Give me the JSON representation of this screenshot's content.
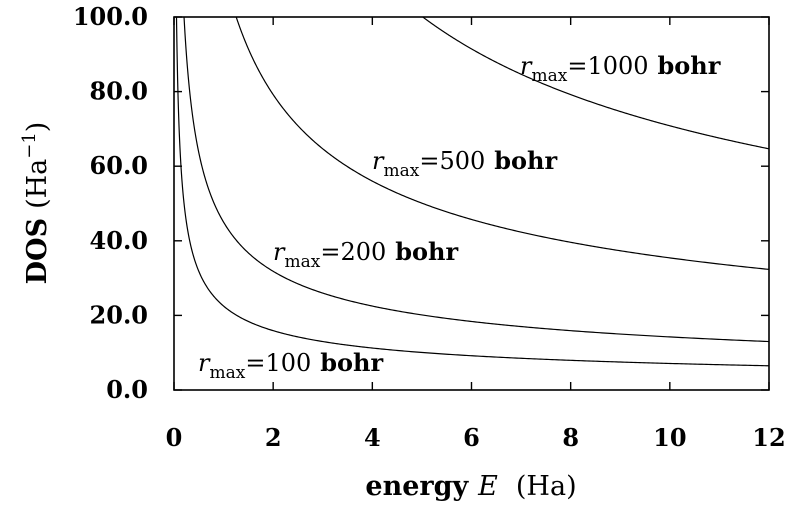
{
  "chart_data": {
    "type": "line",
    "xlabel": {
      "bold": "energy",
      "italic": "E",
      "rest": "(Ha)"
    },
    "ylabel": {
      "bold": "DOS",
      "unit": "Ha",
      "exponent": "−1"
    },
    "xlim": [
      0,
      12
    ],
    "ylim": [
      0,
      100
    ],
    "x_ticks": [
      "0",
      "2",
      "4",
      "6",
      "8",
      "10",
      "12"
    ],
    "y_ticks": [
      "0.0",
      "20.0",
      "40.0",
      "60.0",
      "80.0",
      "100.0"
    ],
    "grid": false,
    "legend": "none",
    "series": [
      {
        "label": {
          "var": "r",
          "sub": "max",
          "value": "=100",
          "unit": "bohr"
        },
        "coefficient": 22.5,
        "x": [
          0.05,
          0.2,
          0.5,
          1,
          2,
          4,
          6,
          8,
          10,
          12
        ],
        "y": [
          100.6,
          50.3,
          31.8,
          22.5,
          15.9,
          11.3,
          9.2,
          8.0,
          7.1,
          6.5
        ]
      },
      {
        "label": {
          "var": "r",
          "sub": "max",
          "value": "=200",
          "unit": "bohr"
        },
        "coefficient": 45,
        "x": [
          0.2,
          0.5,
          1,
          2,
          4,
          6,
          8,
          10,
          12
        ],
        "y": [
          100.6,
          63.6,
          45.0,
          31.8,
          22.5,
          18.4,
          15.9,
          14.2,
          13.0
        ]
      },
      {
        "label": {
          "var": "r",
          "sub": "max",
          "value": "=500",
          "unit": "bohr"
        },
        "coefficient": 112,
        "x": [
          1.25,
          2,
          4,
          6,
          8,
          10,
          12
        ],
        "y": [
          100.2,
          79.2,
          56.0,
          45.7,
          39.6,
          35.4,
          32.3
        ]
      },
      {
        "label": {
          "var": "r",
          "sub": "max",
          "value": "=1000",
          "unit": "bohr"
        },
        "coefficient": 224,
        "x": [
          5.0,
          6,
          8,
          10,
          12
        ],
        "y": [
          100.2,
          91.4,
          79.2,
          70.8,
          64.7
        ]
      }
    ]
  }
}
